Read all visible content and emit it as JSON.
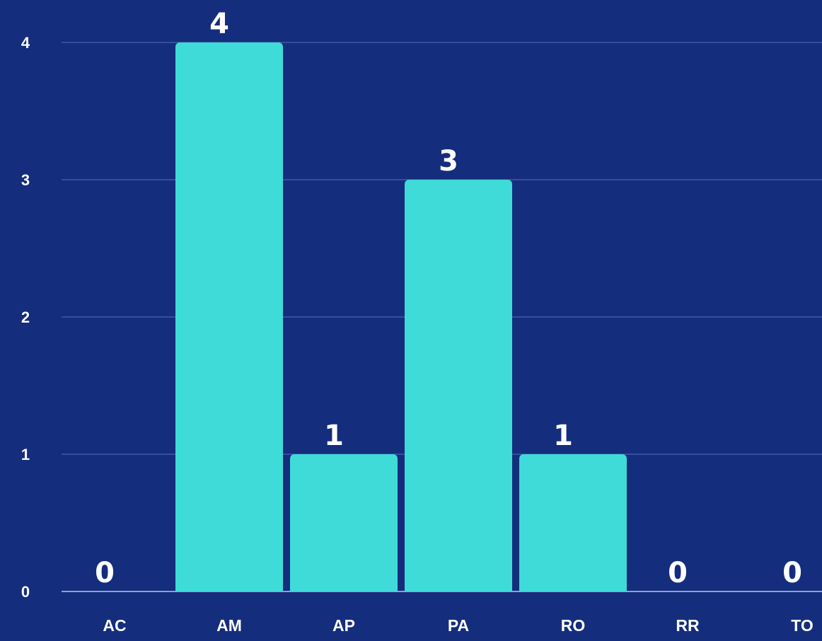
{
  "chart_data": {
    "type": "bar",
    "categories": [
      "AC",
      "AM",
      "AP",
      "PA",
      "RO",
      "RR",
      "TO"
    ],
    "values": [
      0,
      4,
      1,
      3,
      1,
      0,
      0
    ],
    "color": "#3fdbd8",
    "ylim": [
      0,
      4
    ],
    "yticks": [
      0,
      1,
      2,
      3,
      4
    ],
    "grid": true
  }
}
